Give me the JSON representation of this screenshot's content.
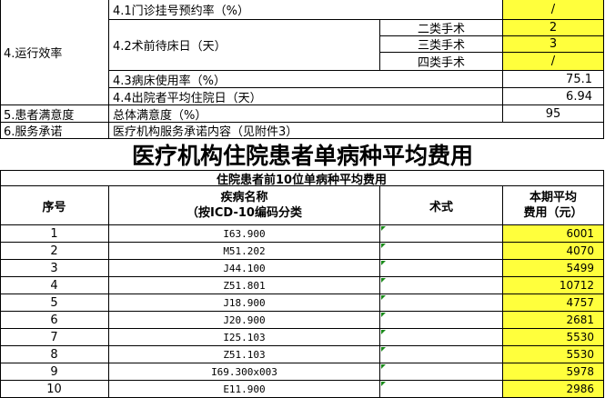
{
  "efficiency": {
    "section": "4.运行效率",
    "appointment_rate": {
      "label": "4.1门诊挂号预约率（%）",
      "value": "/"
    },
    "preop_wait": {
      "label": "4.2术前待床日（天）",
      "rows": [
        {
          "type": "二类手术",
          "value": 2
        },
        {
          "type": "三类手术",
          "value": 3
        },
        {
          "type": "四类手术",
          "value": "/"
        }
      ]
    },
    "bed_usage": {
      "label": "4.3病床使用率（%）",
      "value": 75.1
    },
    "avg_stay": {
      "label": "4.4出院者平均住院日（天）",
      "value": 6.94
    }
  },
  "satisfaction": {
    "section": "5.患者满意度",
    "label": "总体满意度（%）",
    "value": 95
  },
  "commitment": {
    "section": "6.服务承诺",
    "label": "医疗机构服务承诺内容（见附件3）"
  },
  "title": "医疗机构住院患者单病种平均费用",
  "table": {
    "subtitle": "住院患者前10位单病种平均费用",
    "header": {
      "index": "序号",
      "name_line1": "疾病名称",
      "name_line2": "（按ICD-10编码分类",
      "procedure": "术式",
      "cost_line1": "本期平均",
      "cost_line2": "费用（元）"
    },
    "rows": [
      {
        "index": 1,
        "code": "I63.900",
        "cost": 6001
      },
      {
        "index": 2,
        "code": "M51.202",
        "cost": 4070
      },
      {
        "index": 3,
        "code": "J44.100",
        "cost": 5499
      },
      {
        "index": 4,
        "code": "Z51.801",
        "cost": 10712
      },
      {
        "index": 5,
        "code": "J18.900",
        "cost": 4757
      },
      {
        "index": 6,
        "code": "J20.900",
        "cost": 2681
      },
      {
        "index": 7,
        "code": "I25.103",
        "cost": 5530
      },
      {
        "index": 8,
        "code": "Z51.103",
        "cost": 5530
      },
      {
        "index": 9,
        "code": "I69.300x003",
        "cost": 5978
      },
      {
        "index": 10,
        "code": "E11.900",
        "cost": 2986
      }
    ]
  }
}
